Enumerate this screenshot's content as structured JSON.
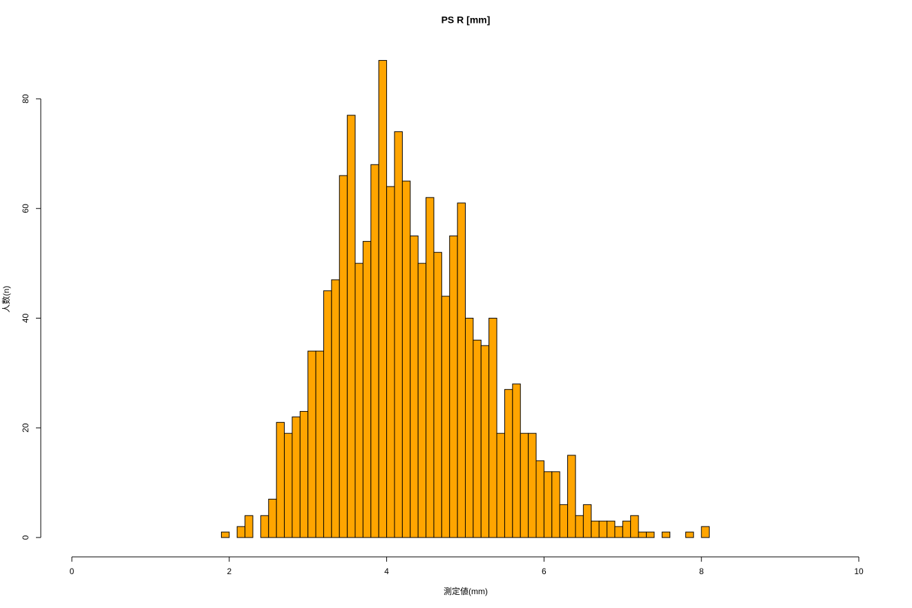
{
  "chart_data": {
    "type": "histogram",
    "title": "PS R [mm]",
    "x_label": "測定値(mm)",
    "y_label": "人数(n)",
    "bins": [
      1.9,
      2.0,
      2.1,
      2.2,
      2.3,
      2.4,
      2.5,
      2.6,
      2.7,
      2.8,
      2.9,
      3.0,
      3.1,
      3.2,
      3.3,
      3.4,
      3.5,
      3.6,
      3.7,
      3.8,
      3.9,
      4.0,
      4.1,
      4.2,
      4.3,
      4.4,
      4.5,
      4.6,
      4.7,
      4.8,
      4.9,
      5.0,
      5.1,
      5.2,
      5.3,
      5.4,
      5.5,
      5.6,
      5.7,
      5.8,
      5.9,
      6.0,
      6.1,
      6.2,
      6.3,
      6.4,
      6.5,
      6.6,
      6.7,
      6.8,
      6.9,
      7.0,
      7.1,
      7.2,
      7.3,
      7.4,
      7.5,
      7.6,
      7.7,
      7.8,
      7.9,
      8.0,
      8.1
    ],
    "values": [
      1,
      0,
      2,
      4,
      0,
      4,
      7,
      21,
      19,
      22,
      23,
      34,
      34,
      45,
      47,
      66,
      77,
      50,
      54,
      68,
      87,
      64,
      74,
      65,
      55,
      50,
      62,
      52,
      44,
      55,
      61,
      40,
      36,
      35,
      40,
      19,
      27,
      28,
      19,
      19,
      14,
      12,
      12,
      6,
      15,
      4,
      6,
      3,
      3,
      3,
      2,
      3,
      4,
      1,
      1,
      0,
      1,
      0,
      0,
      1,
      0,
      2
    ],
    "color": "#ffa500",
    "xlim": [
      0,
      10
    ],
    "xticks": [
      0,
      2,
      4,
      6,
      8,
      10
    ],
    "ylim": [
      0,
      80
    ],
    "yticks": [
      0,
      20,
      40,
      60,
      80
    ]
  }
}
